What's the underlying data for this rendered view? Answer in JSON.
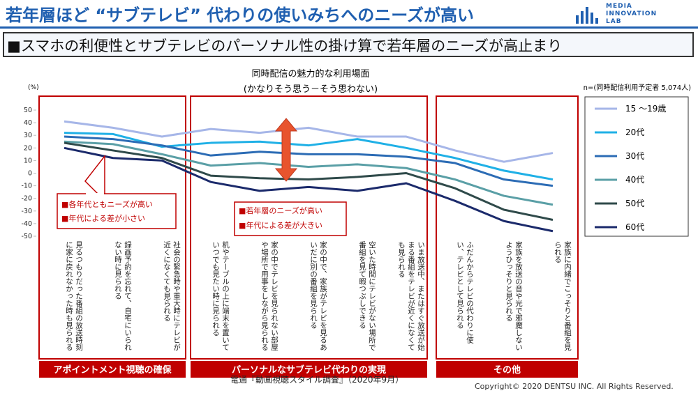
{
  "header": {
    "title": "若年層ほど “サブテレビ” 代わりの使いみちへのニーズが高い",
    "logo": [
      "MEDIA",
      "INNOVATION",
      "LAB"
    ]
  },
  "subtitle": "■スマホの利便性とサブテレビのパーソナル性の掛け算で若年層のニーズが高止まり",
  "chart_data": {
    "type": "line",
    "title": "同時配信の魅力的な利用場面",
    "subtitle": "(かなりそう思う－そう思わない)",
    "note": "n=(同時配信利用予定者 5,074人)",
    "y_label": "(%)",
    "categories": [
      "見るつもりだった番組の放送時刻に家に戻れなかった時も見られる",
      "録画予約を忘れて、自宅にいられない時に見られる",
      "社会の緊急時や重大時にテレビが近くになくても見られる",
      "机やテーブルの上に端末を置いていつでも見たい時に見られる",
      "家の中でテレビを見られない部屋や場所で用事をしながら見られる",
      "家の中で、家族がテレビを見るあいだに別の番組を見られる",
      "空いた時間にテレビがない場所で番組を見て暇つぶしできる",
      "いま放送中、またはすぐ放送が始まる番組をテレビが近くになくても見られる",
      "ふだんからテレビの代わりに使い、テレビとして見られる",
      "家族を放送の音や光で邪魔しないようひっそりと見られる",
      "家族に内緒でこっそりと番組を見られる"
    ],
    "series": [
      {
        "name": "15 ～19歳",
        "color": "#a6b6e8",
        "values": [
          41,
          36,
          29,
          35,
          32,
          36,
          29,
          29,
          18,
          9,
          16
        ]
      },
      {
        "name": "20代",
        "color": "#1fb0e6",
        "values": [
          32,
          31,
          21,
          24,
          25,
          22,
          27,
          20,
          12,
          2,
          -5
        ]
      },
      {
        "name": "30代",
        "color": "#2c6cb5",
        "values": [
          29,
          27,
          22,
          14,
          17,
          15,
          15,
          13,
          8,
          -5,
          -10
        ]
      },
      {
        "name": "40代",
        "color": "#5a9fa6",
        "values": [
          25,
          23,
          15,
          6,
          8,
          5,
          7,
          4,
          -5,
          -18,
          -25
        ]
      },
      {
        "name": "50代",
        "color": "#2f4a4a",
        "values": [
          24,
          18,
          12,
          -2,
          -4,
          -5,
          -3,
          0,
          -12,
          -29,
          -37
        ]
      },
      {
        "name": "60代",
        "color": "#1b2a6b",
        "values": [
          20,
          12,
          10,
          -7,
          -14,
          -11,
          -14,
          -8,
          -22,
          -38,
          -46
        ]
      }
    ],
    "ylim": [
      -50,
      50
    ],
    "yticks": [
      50,
      40,
      30,
      20,
      10,
      0,
      -10,
      -20,
      -30,
      -40,
      -50
    ],
    "groups": [
      "アポイントメント視聴の確保",
      "パーソナルなサブテレビ代わりの実現",
      "その他"
    ],
    "annotations": [
      [
        "■各年代ともニーズが高い",
        "■年代による差が小さい"
      ],
      [
        "■若年層のニーズが高い",
        "■年代による差が大きい"
      ]
    ]
  },
  "footer": {
    "source": "電通『動画視聴スタイル調査』（2020年9月）",
    "copyright": "Copyright© 2020 DENTSU INC. All Rights Reserved."
  }
}
